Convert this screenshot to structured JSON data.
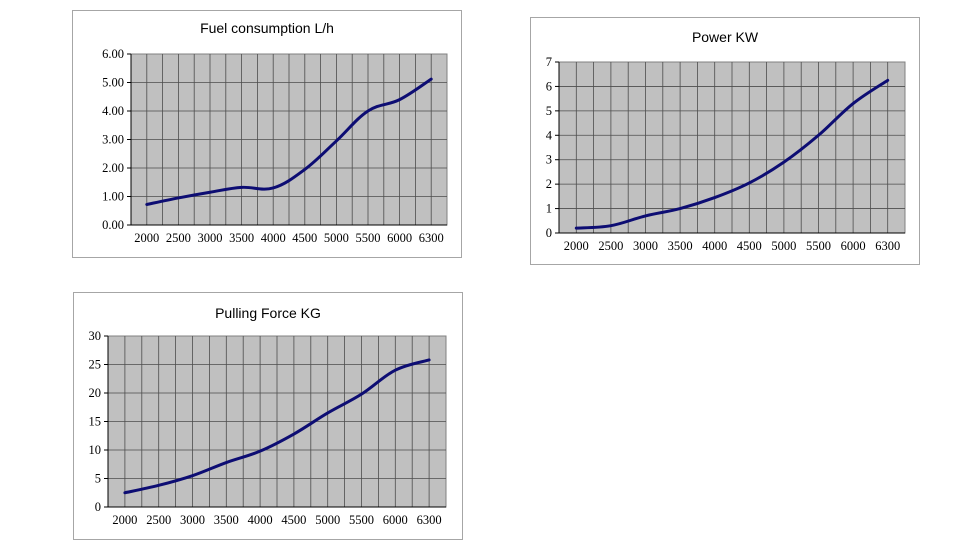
{
  "chart_data": [
    {
      "type": "line",
      "title": "Fuel  consumption L/h",
      "categories": [
        "2000",
        "2500",
        "3000",
        "3500",
        "4000",
        "4500",
        "5000",
        "5500",
        "6000",
        "6300"
      ],
      "ytick_labels": [
        "0.00",
        "1.00",
        "2.00",
        "3.00",
        "4.00",
        "5.00",
        "6.00"
      ],
      "ylim": [
        0,
        6
      ],
      "grid": true,
      "grid_columns": 20,
      "series": [
        {
          "values": [
            0.72,
            0.95,
            1.15,
            1.32,
            1.3,
            1.95,
            2.95,
            4.0,
            4.4,
            5.12
          ]
        }
      ],
      "colors": {
        "line": "#0d0d73",
        "plot_bg": "#c0c0c0",
        "grid": "#4d4d4d"
      }
    },
    {
      "type": "line",
      "title": "Power KW",
      "categories": [
        "2000",
        "2500",
        "3000",
        "3500",
        "4000",
        "4500",
        "5000",
        "5500",
        "6000",
        "6300"
      ],
      "ytick_labels": [
        "0",
        "1",
        "2",
        "3",
        "4",
        "5",
        "6",
        "7"
      ],
      "ylim": [
        0,
        7
      ],
      "grid": true,
      "grid_columns": 20,
      "series": [
        {
          "values": [
            0.2,
            0.3,
            0.7,
            1.0,
            1.45,
            2.05,
            2.9,
            4.0,
            5.3,
            6.25
          ]
        }
      ],
      "colors": {
        "line": "#0d0d73",
        "plot_bg": "#c0c0c0",
        "grid": "#4d4d4d"
      }
    },
    {
      "type": "line",
      "title": "Pulling Force KG",
      "categories": [
        "2000",
        "2500",
        "3000",
        "3500",
        "4000",
        "4500",
        "5000",
        "5500",
        "6000",
        "6300"
      ],
      "ytick_labels": [
        "0",
        "5",
        "10",
        "15",
        "20",
        "25",
        "30"
      ],
      "ylim": [
        0,
        30
      ],
      "grid": true,
      "grid_columns": 20,
      "series": [
        {
          "values": [
            2.5,
            3.8,
            5.5,
            7.8,
            9.8,
            12.8,
            16.5,
            19.8,
            24.0,
            25.8
          ]
        }
      ],
      "colors": {
        "line": "#0d0d73",
        "plot_bg": "#c0c0c0",
        "grid": "#4d4d4d"
      }
    }
  ]
}
